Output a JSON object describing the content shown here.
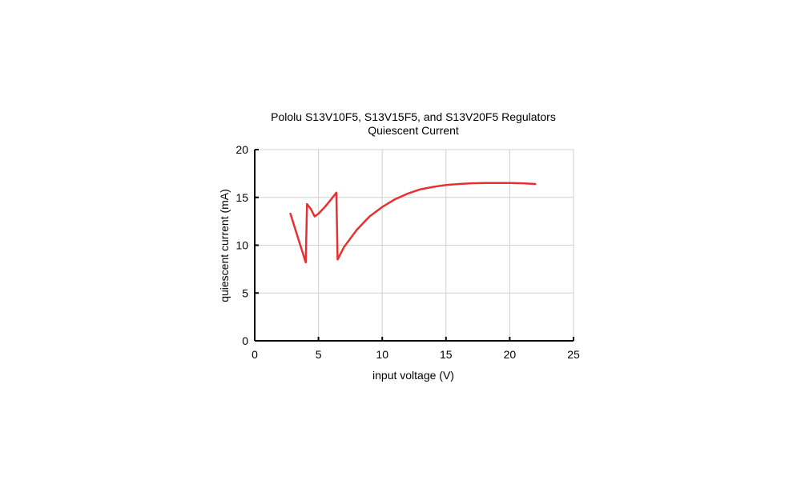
{
  "chart_data": {
    "type": "line",
    "title": "Pololu S13V10F5, S13V15F5, and S13V20F5 Regulators",
    "subtitle": "Quiescent Current",
    "xlabel": "input voltage (V)",
    "ylabel": "quiescent current (mA)",
    "xlim": [
      0,
      25
    ],
    "ylim": [
      0,
      20
    ],
    "xticks": [
      0,
      5,
      10,
      15,
      20,
      25
    ],
    "yticks": [
      0,
      5,
      10,
      15,
      20
    ],
    "grid": true,
    "series": [
      {
        "color": "#e83030",
        "x": [
          2.8,
          3.2,
          3.6,
          4.0,
          4.1,
          4.4,
          4.7,
          5.0,
          5.5,
          6.0,
          6.4,
          6.5,
          7.0,
          8.0,
          9.0,
          10.0,
          11.0,
          12.0,
          13.0,
          14.0,
          15.0,
          16.0,
          17.0,
          18.0,
          19.0,
          20.0,
          21.0,
          22.0
        ],
        "y": [
          13.3,
          11.6,
          9.9,
          8.2,
          14.3,
          13.8,
          13.0,
          13.3,
          14.0,
          14.8,
          15.5,
          8.5,
          9.8,
          11.6,
          13.0,
          14.0,
          14.8,
          15.4,
          15.85,
          16.1,
          16.3,
          16.4,
          16.48,
          16.5,
          16.5,
          16.5,
          16.48,
          16.4
        ]
      }
    ]
  }
}
